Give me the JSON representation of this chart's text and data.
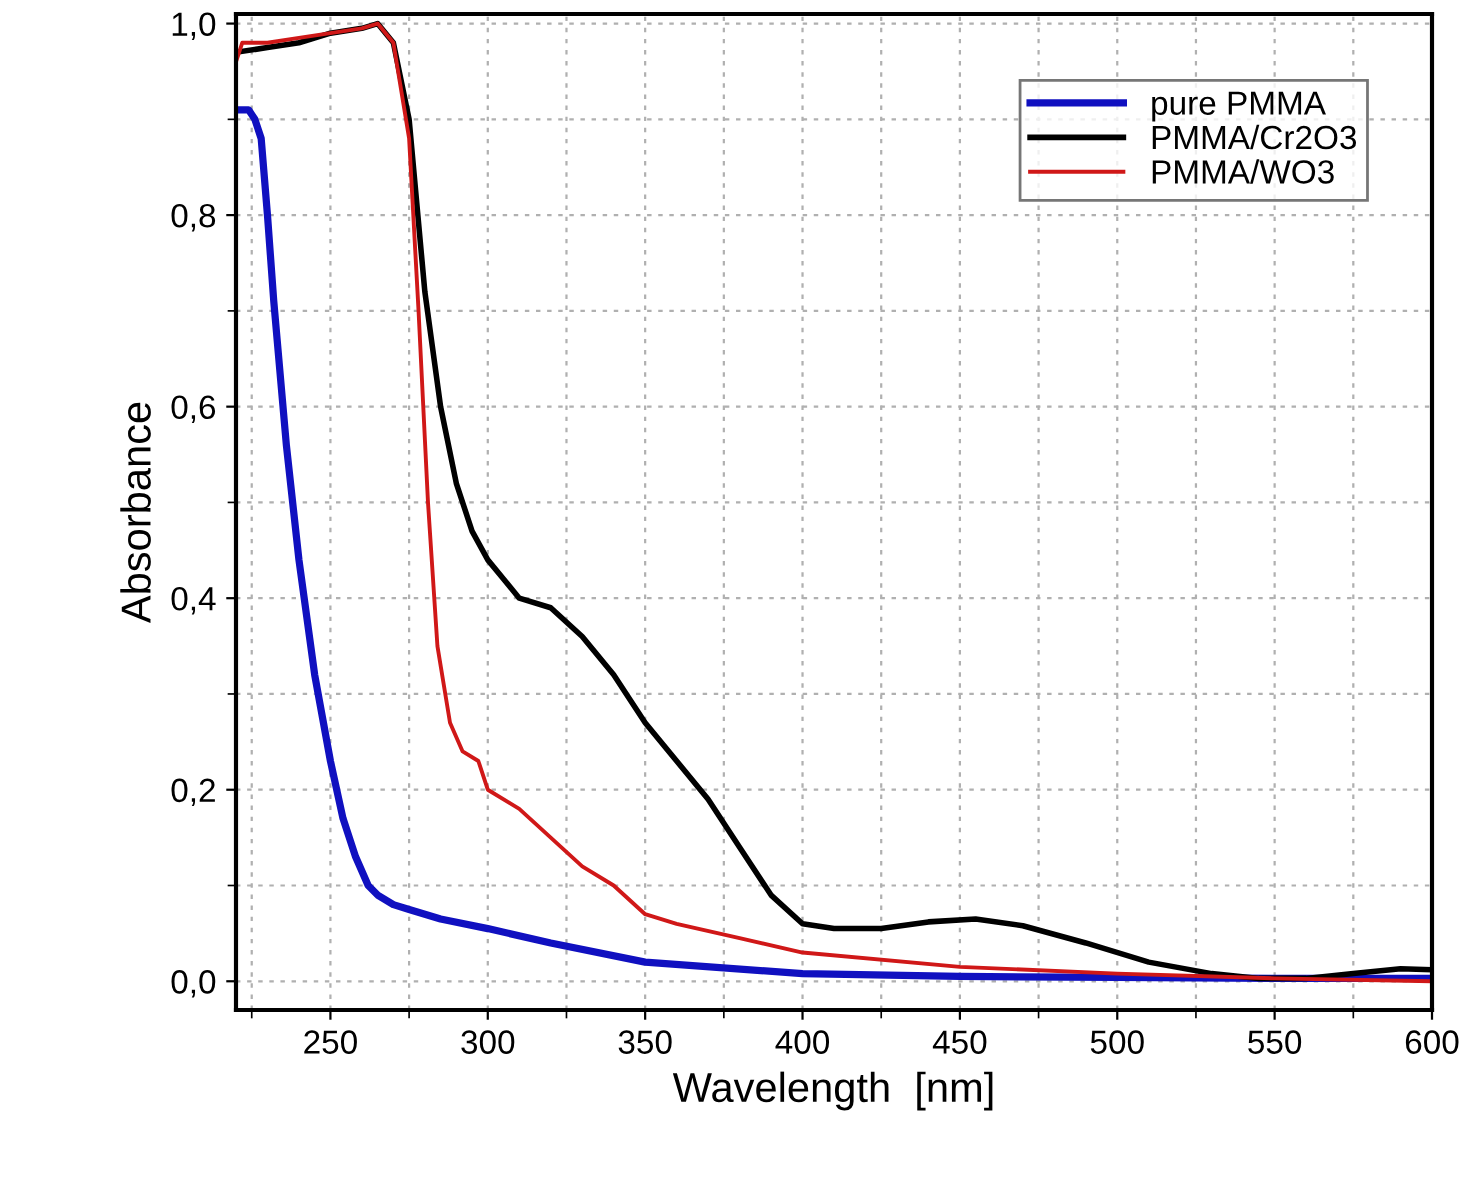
{
  "chart_data": {
    "type": "line",
    "xlabel": "Wavelength  [nm]",
    "ylabel": "Absorbance",
    "xlim": [
      220,
      600
    ],
    "xticks": [
      250,
      300,
      350,
      400,
      450,
      500,
      550,
      600
    ],
    "ylim": [
      -0.03,
      1.01
    ],
    "yticks": [
      {
        "value": 0,
        "label": "0,0"
      },
      {
        "value": 0.2,
        "label": "0,2"
      },
      {
        "value": 0.4,
        "label": "0,4"
      },
      {
        "value": 0.6,
        "label": "0,6"
      },
      {
        "value": 0.8,
        "label": "0,8"
      },
      {
        "value": 1,
        "label": "1,0"
      }
    ],
    "grid": true,
    "legend": "top right",
    "line_style": "solid",
    "marker": "none",
    "series": [
      {
        "name": "pure PMMA",
        "color": "#1010c0",
        "x": [
          220,
          224,
          226,
          228,
          230,
          232,
          236,
          240,
          245,
          250,
          254,
          258,
          262,
          265,
          270,
          275,
          285,
          300,
          320,
          350,
          400,
          450,
          500,
          550,
          600
        ],
        "values": [
          0.91,
          0.91,
          0.9,
          0.88,
          0.8,
          0.71,
          0.56,
          0.44,
          0.32,
          0.23,
          0.17,
          0.13,
          0.1,
          0.09,
          0.08,
          0.075,
          0.065,
          0.055,
          0.04,
          0.02,
          0.008,
          0.005,
          0.004,
          0.003,
          0.003
        ]
      },
      {
        "name": "PMMA/Cr2O3",
        "color": "#000000",
        "x": [
          220,
          230,
          240,
          250,
          260,
          265,
          270,
          275,
          280,
          285,
          290,
          295,
          300,
          305,
          310,
          320,
          330,
          340,
          350,
          360,
          370,
          380,
          390,
          400,
          410,
          425,
          440,
          455,
          470,
          490,
          510,
          530,
          545,
          560,
          575,
          590,
          600
        ],
        "values": [
          0.97,
          0.975,
          0.98,
          0.99,
          0.995,
          1.0,
          0.98,
          0.9,
          0.72,
          0.6,
          0.52,
          0.47,
          0.44,
          0.42,
          0.4,
          0.39,
          0.36,
          0.32,
          0.27,
          0.23,
          0.19,
          0.14,
          0.09,
          0.06,
          0.055,
          0.055,
          0.062,
          0.065,
          0.058,
          0.04,
          0.02,
          0.008,
          0.003,
          0.003,
          0.008,
          0.013,
          0.012
        ]
      },
      {
        "name": "PMMA/WO3",
        "color": "#d01818",
        "x": [
          220,
          222,
          230,
          240,
          250,
          260,
          265,
          270,
          275,
          278,
          281,
          284,
          288,
          292,
          297,
          300,
          310,
          320,
          330,
          340,
          350,
          360,
          380,
          400,
          450,
          500,
          550,
          600
        ],
        "values": [
          0.96,
          0.98,
          0.98,
          0.985,
          0.99,
          0.995,
          1.0,
          0.98,
          0.88,
          0.7,
          0.5,
          0.35,
          0.27,
          0.24,
          0.23,
          0.2,
          0.18,
          0.15,
          0.12,
          0.1,
          0.07,
          0.06,
          0.045,
          0.03,
          0.015,
          0.008,
          0.003,
          0.0
        ]
      }
    ]
  }
}
